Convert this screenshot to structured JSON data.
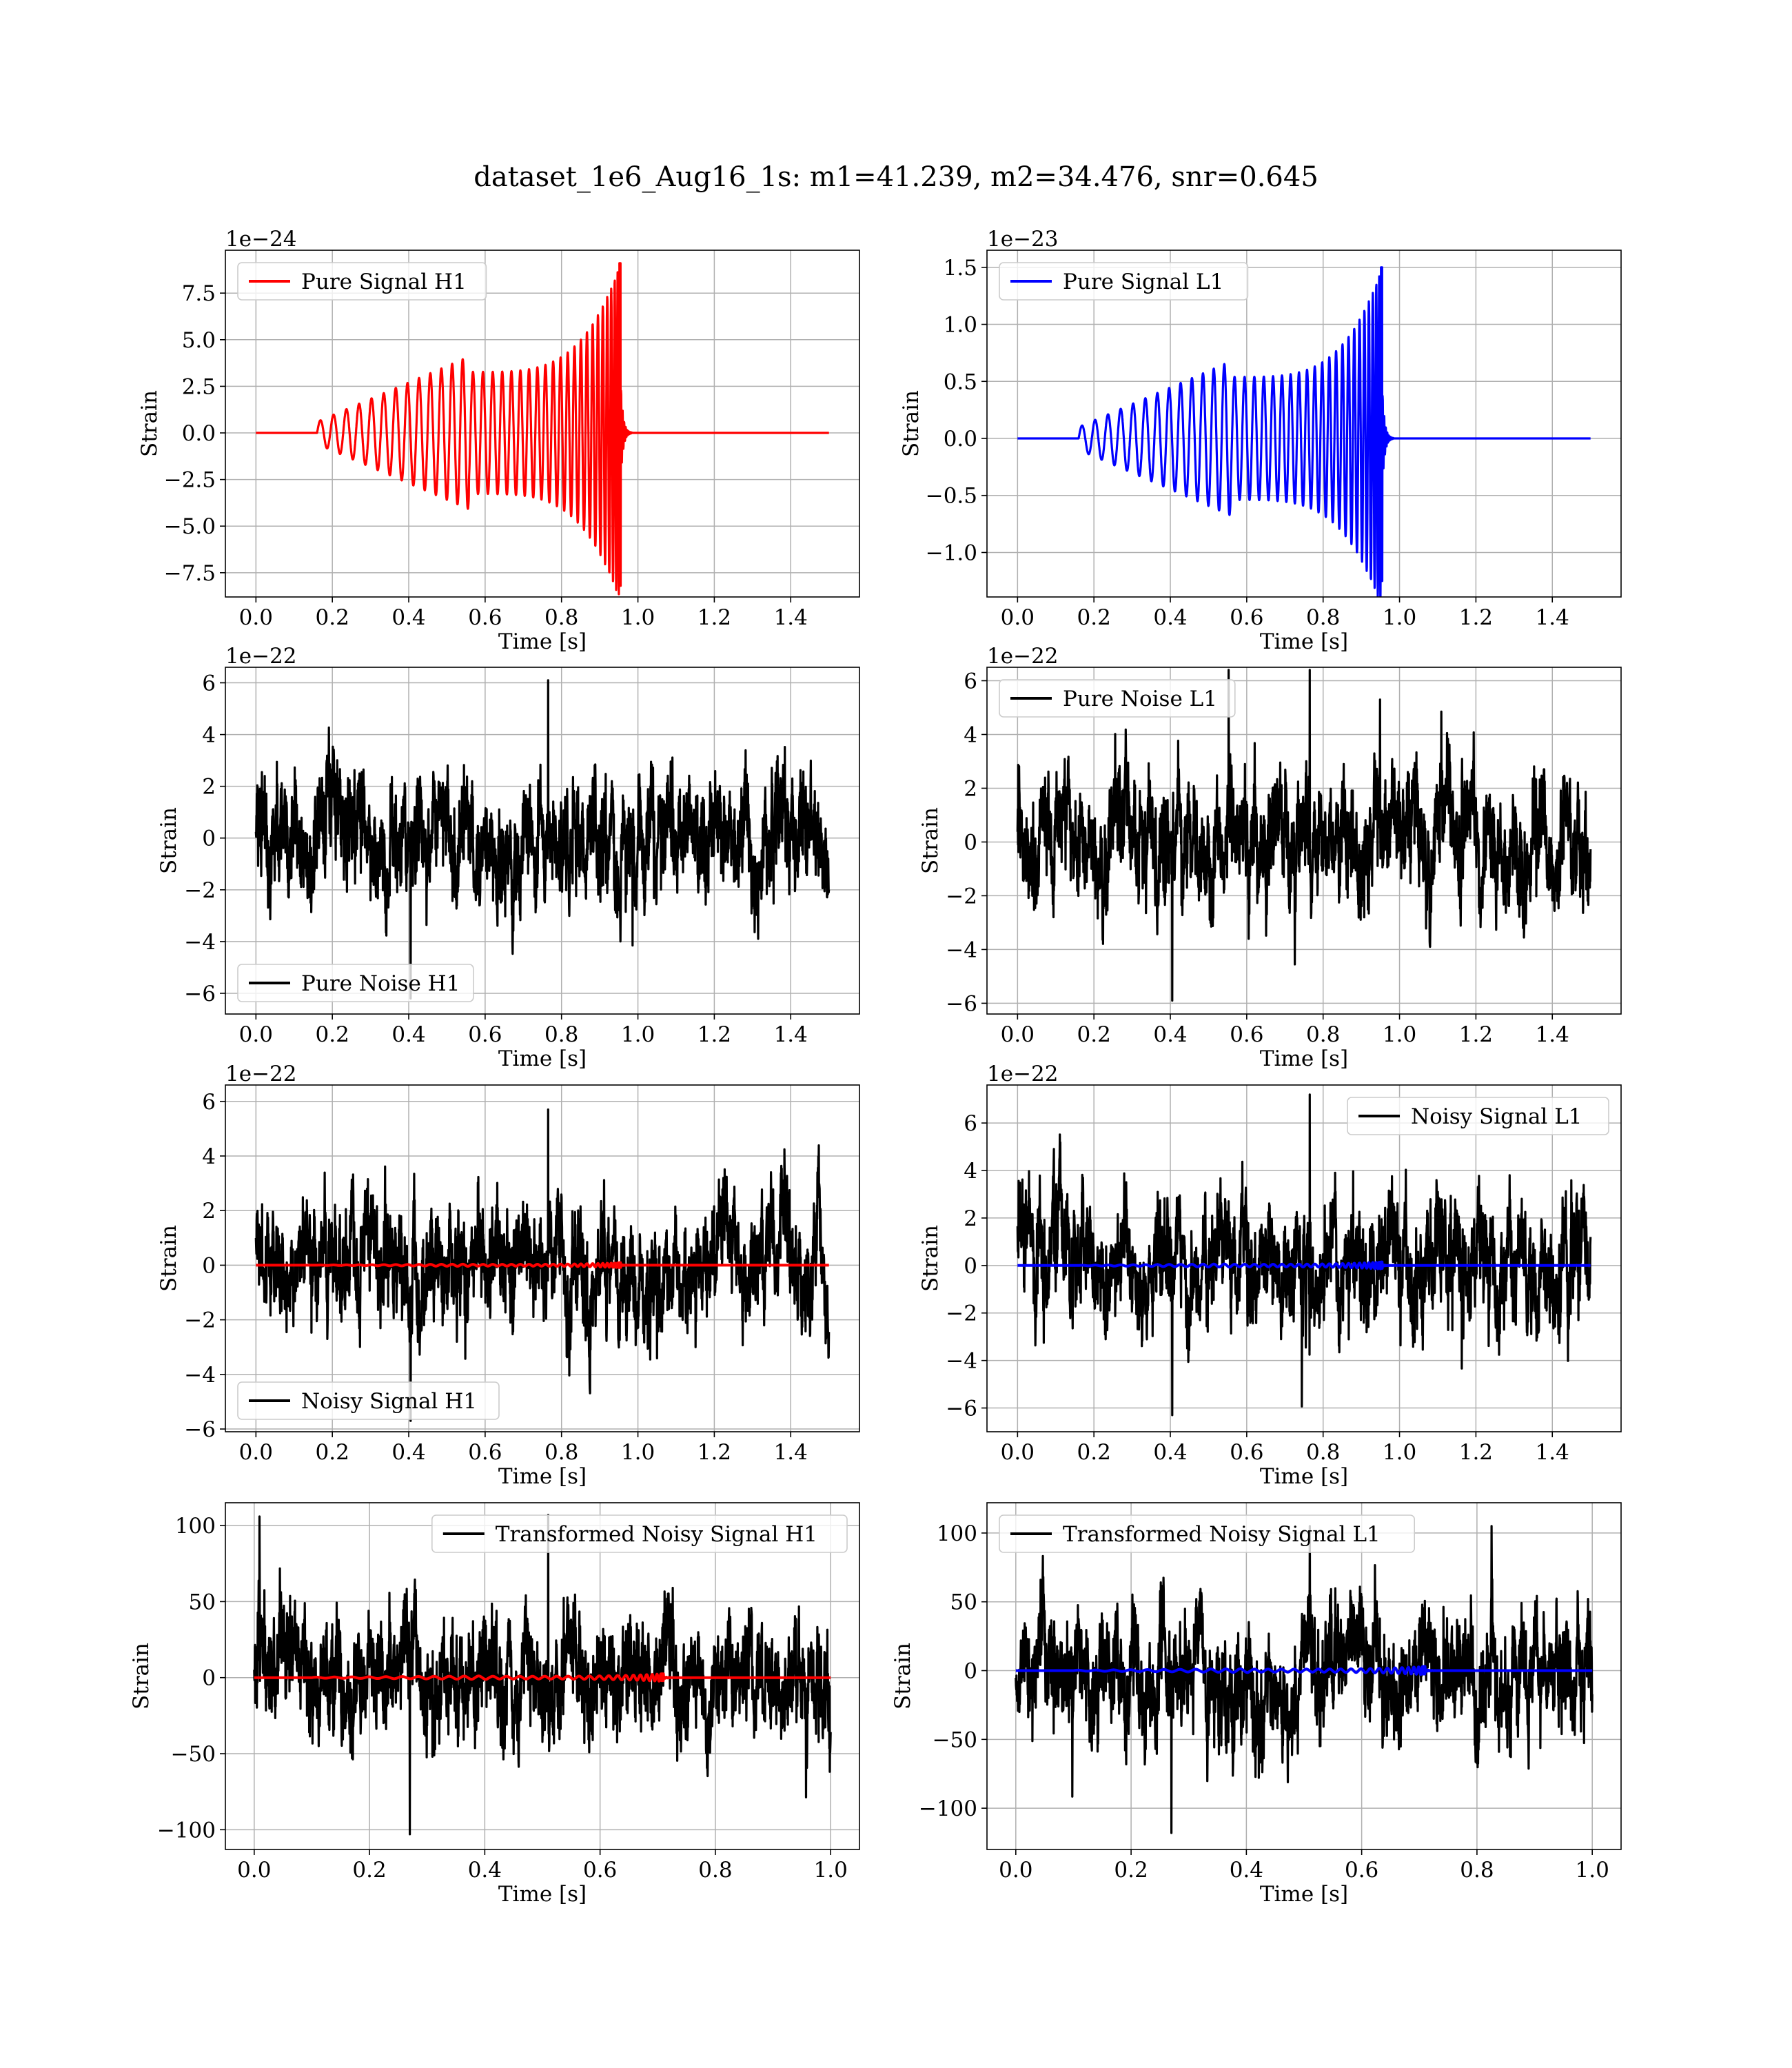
{
  "figure_title": "dataset_1e6_Aug16_1s: m1=41.239, m2=34.476, snr=0.645",
  "chart_data": [
    {
      "type": "line",
      "xlabel": "Time [s]",
      "ylabel": "Strain",
      "offset_text": "1e−24",
      "xlim": [
        -0.08,
        1.58
      ],
      "ylim": [
        -8.8,
        9.8
      ],
      "xticks": [
        0.0,
        0.2,
        0.4,
        0.6,
        0.8,
        1.0,
        1.2,
        1.4
      ],
      "xtick_labels": [
        "0.0",
        "0.2",
        "0.4",
        "0.6",
        "0.8",
        "1.0",
        "1.2",
        "1.4"
      ],
      "yticks": [
        -7.5,
        -5.0,
        -2.5,
        0.0,
        2.5,
        5.0,
        7.5
      ],
      "ytick_labels": [
        "−7.5",
        "−5.0",
        "−2.5",
        "0.0",
        "2.5",
        "5.0",
        "7.5"
      ],
      "grid": true,
      "legend_position": "upper-left",
      "series": [
        {
          "name": "Pure Signal H1",
          "color": "#ff0000",
          "kind": "chirp",
          "x_start": 0.0,
          "x_end": 1.5,
          "t_onset": 0.16,
          "t_merge": 0.955,
          "amp_start": 0.6,
          "amp_peak": 9.1,
          "amp_min": -8.2,
          "in_legend": true
        }
      ]
    },
    {
      "type": "line",
      "xlabel": "Time [s]",
      "ylabel": "Strain",
      "offset_text": "1e−23",
      "xlim": [
        -0.08,
        1.58
      ],
      "ylim": [
        -1.39,
        1.65
      ],
      "xticks": [
        0.0,
        0.2,
        0.4,
        0.6,
        0.8,
        1.0,
        1.2,
        1.4
      ],
      "xtick_labels": [
        "0.0",
        "0.2",
        "0.4",
        "0.6",
        "0.8",
        "1.0",
        "1.2",
        "1.4"
      ],
      "yticks": [
        -1.0,
        -0.5,
        0.0,
        0.5,
        1.0,
        1.5
      ],
      "ytick_labels": [
        "−1.0",
        "−0.5",
        "0.0",
        "0.5",
        "1.0",
        "1.5"
      ],
      "grid": true,
      "legend_position": "upper-left",
      "series": [
        {
          "name": "Pure Signal L1",
          "color": "#0000ff",
          "kind": "chirp",
          "x_start": 0.0,
          "x_end": 1.5,
          "t_onset": 0.16,
          "t_merge": 0.955,
          "amp_start": 0.1,
          "amp_peak": 1.5,
          "amp_min": -1.25,
          "in_legend": true
        }
      ]
    },
    {
      "type": "line",
      "xlabel": "Time [s]",
      "ylabel": "Strain",
      "offset_text": "1e−22",
      "xlim": [
        -0.08,
        1.58
      ],
      "ylim": [
        -6.8,
        6.6
      ],
      "xticks": [
        0.0,
        0.2,
        0.4,
        0.6,
        0.8,
        1.0,
        1.2,
        1.4
      ],
      "xtick_labels": [
        "0.0",
        "0.2",
        "0.4",
        "0.6",
        "0.8",
        "1.0",
        "1.2",
        "1.4"
      ],
      "yticks": [
        -6,
        -4,
        -2,
        0,
        2,
        4,
        6
      ],
      "ytick_labels": [
        "−6",
        "−4",
        "−2",
        "0",
        "2",
        "4",
        "6"
      ],
      "grid": true,
      "legend_position": "lower-left",
      "series": [
        {
          "name": "Pure Noise H1",
          "color": "#000000",
          "kind": "noise",
          "x_start": 0.0,
          "x_end": 1.5,
          "ymin": -6.2,
          "ymax": 6.1,
          "in_legend": true
        }
      ]
    },
    {
      "type": "line",
      "xlabel": "Time [s]",
      "ylabel": "Strain",
      "offset_text": "1e−22",
      "xlim": [
        -0.08,
        1.58
      ],
      "ylim": [
        -6.4,
        6.5
      ],
      "xticks": [
        0.0,
        0.2,
        0.4,
        0.6,
        0.8,
        1.0,
        1.2,
        1.4
      ],
      "xtick_labels": [
        "0.0",
        "0.2",
        "0.4",
        "0.6",
        "0.8",
        "1.0",
        "1.2",
        "1.4"
      ],
      "yticks": [
        -6,
        -4,
        -2,
        0,
        2,
        4,
        6
      ],
      "ytick_labels": [
        "−6",
        "−4",
        "−2",
        "0",
        "2",
        "4",
        "6"
      ],
      "grid": true,
      "legend_position": "upper-left",
      "series": [
        {
          "name": "Pure Noise L1",
          "color": "#000000",
          "kind": "noise",
          "x_start": 0.0,
          "x_end": 1.5,
          "ymin": -5.9,
          "ymax": 6.4,
          "in_legend": true
        }
      ]
    },
    {
      "type": "line",
      "xlabel": "Time [s]",
      "ylabel": "Strain",
      "offset_text": "1e−22",
      "xlim": [
        -0.08,
        1.58
      ],
      "ylim": [
        -6.1,
        6.6
      ],
      "xticks": [
        0.0,
        0.2,
        0.4,
        0.6,
        0.8,
        1.0,
        1.2,
        1.4
      ],
      "xtick_labels": [
        "0.0",
        "0.2",
        "0.4",
        "0.6",
        "0.8",
        "1.0",
        "1.2",
        "1.4"
      ],
      "yticks": [
        -6,
        -4,
        -2,
        0,
        2,
        4,
        6
      ],
      "ytick_labels": [
        "−6",
        "−4",
        "−2",
        "0",
        "2",
        "4",
        "6"
      ],
      "grid": true,
      "legend_position": "lower-left",
      "series": [
        {
          "name": "Noisy Signal H1",
          "color": "#000000",
          "kind": "noise",
          "x_start": 0.0,
          "x_end": 1.5,
          "ymin": -5.7,
          "ymax": 5.7,
          "in_legend": true
        },
        {
          "name": "",
          "color": "#ff0000",
          "kind": "chirp",
          "x_start": 0.0,
          "x_end": 1.5,
          "t_onset": 0.16,
          "t_merge": 0.955,
          "amp_start": 0.006,
          "amp_peak": 0.09,
          "amp_min": -0.08,
          "in_legend": false
        }
      ]
    },
    {
      "type": "line",
      "xlabel": "Time [s]",
      "ylabel": "Strain",
      "offset_text": "1e−22",
      "xlim": [
        -0.08,
        1.58
      ],
      "ylim": [
        -7.0,
        7.6
      ],
      "xticks": [
        0.0,
        0.2,
        0.4,
        0.6,
        0.8,
        1.0,
        1.2,
        1.4
      ],
      "xtick_labels": [
        "0.0",
        "0.2",
        "0.4",
        "0.6",
        "0.8",
        "1.0",
        "1.2",
        "1.4"
      ],
      "yticks": [
        -6,
        -4,
        -2,
        0,
        2,
        4,
        6
      ],
      "ytick_labels": [
        "−6",
        "−4",
        "−2",
        "0",
        "2",
        "4",
        "6"
      ],
      "grid": true,
      "legend_position": "upper-right",
      "series": [
        {
          "name": "Noisy Signal L1",
          "color": "#000000",
          "kind": "noise",
          "x_start": 0.0,
          "x_end": 1.5,
          "ymin": -6.3,
          "ymax": 7.2,
          "in_legend": true
        },
        {
          "name": "",
          "color": "#0000ff",
          "kind": "chirp",
          "x_start": 0.0,
          "x_end": 1.5,
          "t_onset": 0.16,
          "t_merge": 0.955,
          "amp_start": 0.01,
          "amp_peak": 0.15,
          "amp_min": -0.12,
          "in_legend": false
        }
      ]
    },
    {
      "type": "line",
      "xlabel": "Time [s]",
      "ylabel": "Strain",
      "offset_text": "",
      "xlim": [
        -0.05,
        1.05
      ],
      "ylim": [
        -113,
        115
      ],
      "xticks": [
        0.0,
        0.2,
        0.4,
        0.6,
        0.8,
        1.0
      ],
      "xtick_labels": [
        "0.0",
        "0.2",
        "0.4",
        "0.6",
        "0.8",
        "1.0"
      ],
      "yticks": [
        -100,
        -50,
        0,
        50,
        100
      ],
      "ytick_labels": [
        "−100",
        "−50",
        "0",
        "50",
        "100"
      ],
      "grid": true,
      "legend_position": "upper-right",
      "series": [
        {
          "name": "Transformed Noisy Signal H1",
          "color": "#000000",
          "kind": "noise",
          "x_start": 0.0,
          "x_end": 1.0,
          "ymin": -103,
          "ymax": 107,
          "in_legend": true
        },
        {
          "name": "",
          "color": "#ff0000",
          "kind": "chirp",
          "x_start": 0.0,
          "x_end": 1.0,
          "t_onset": 0.1,
          "t_merge": 0.71,
          "amp_start": 0.3,
          "amp_peak": 2.5,
          "amp_min": -2.0,
          "in_legend": false
        }
      ]
    },
    {
      "type": "line",
      "xlabel": "Time [s]",
      "ylabel": "Strain",
      "offset_text": "",
      "xlim": [
        -0.05,
        1.05
      ],
      "ylim": [
        -130,
        122
      ],
      "xticks": [
        0.0,
        0.2,
        0.4,
        0.6,
        0.8,
        1.0
      ],
      "xtick_labels": [
        "0.0",
        "0.2",
        "0.4",
        "0.6",
        "0.8",
        "1.0"
      ],
      "yticks": [
        -100,
        -50,
        0,
        50,
        100
      ],
      "ytick_labels": [
        "−100",
        "−50",
        "0",
        "50",
        "100"
      ],
      "grid": true,
      "legend_position": "upper-left",
      "series": [
        {
          "name": "Transformed Noisy Signal L1",
          "color": "#000000",
          "kind": "noise",
          "x_start": 0.0,
          "x_end": 1.0,
          "ymin": -118,
          "ymax": 105,
          "in_legend": true
        },
        {
          "name": "",
          "color": "#0000ff",
          "kind": "chirp",
          "x_start": 0.0,
          "x_end": 1.0,
          "t_onset": 0.1,
          "t_merge": 0.71,
          "amp_start": 0.3,
          "amp_peak": 3.0,
          "amp_min": -2.5,
          "in_legend": false
        }
      ]
    }
  ]
}
